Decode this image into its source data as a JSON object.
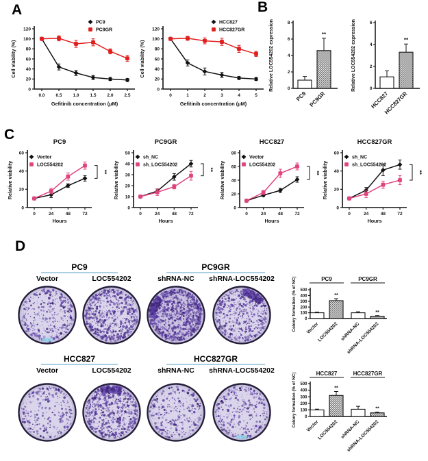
{
  "panel_labels": {
    "a": "A",
    "b": "B",
    "c": "C",
    "d": "D"
  },
  "colors": {
    "black_series": "#111111",
    "red_series": "#e11d1d",
    "pink_series": "#e0447e",
    "axis": "#111111",
    "dish_fill": "#d7d1e8",
    "dish_ring": "#251d39",
    "dish_rim_band": "#c3bcdb",
    "dot_colors": [
      "#4b2f8e",
      "#5d41a5",
      "#6f55b5",
      "#3c2470"
    ],
    "header_underline": "#aacfe3",
    "cyan_spot": "#8fd4ea"
  },
  "chart_data": [
    {
      "id": "A-left",
      "type": "line",
      "title": "",
      "xlabel": "Gefitinib concentration (μM)",
      "ylabel": "Cell viability (%)",
      "x": [
        0,
        0.5,
        1,
        1.5,
        2,
        2.5
      ],
      "xtick_labels": [
        "0.0",
        "0.5",
        "1.0",
        "1.5",
        "2.0",
        "2.5"
      ],
      "ylim": [
        0,
        120
      ],
      "yticks": [
        0,
        20,
        40,
        60,
        80,
        100,
        120
      ],
      "legend_position": "top-right",
      "series": [
        {
          "name": "PC9",
          "color": "black",
          "marker": "diamond",
          "values": [
            100,
            44,
            32,
            23,
            20,
            18
          ],
          "err": [
            3,
            6,
            5,
            4,
            3,
            3
          ]
        },
        {
          "name": "PC9GR",
          "color": "red",
          "marker": "square",
          "values": [
            100,
            101,
            90,
            93,
            75,
            61
          ],
          "err": [
            3,
            5,
            7,
            7,
            5,
            6
          ]
        }
      ]
    },
    {
      "id": "A-right",
      "type": "line",
      "title": "",
      "xlabel": "Gefitinib concentration (μM)",
      "ylabel": "Cell viability (%)",
      "x": [
        0,
        1,
        2,
        3,
        4,
        5
      ],
      "xtick_labels": [
        "0",
        "1",
        "2",
        "3",
        "4",
        "5"
      ],
      "ylim": [
        0,
        120
      ],
      "yticks": [
        0,
        20,
        40,
        60,
        80,
        100,
        120
      ],
      "legend_position": "top-right",
      "series": [
        {
          "name": "HCC827",
          "color": "black",
          "marker": "diamond",
          "values": [
            100,
            52,
            35,
            28,
            22,
            20
          ],
          "err": [
            3,
            6,
            7,
            5,
            3,
            3
          ]
        },
        {
          "name": "HCC827GR",
          "color": "red",
          "marker": "square",
          "values": [
            100,
            101,
            96,
            94,
            80,
            70
          ],
          "err": [
            3,
            4,
            6,
            7,
            7,
            5
          ]
        }
      ]
    },
    {
      "id": "B-left",
      "type": "bar",
      "ylabel": "Relative LOC554202 expression",
      "ylim": [
        0,
        8
      ],
      "yticks": [
        0,
        2,
        4,
        6,
        8
      ],
      "bars": [
        {
          "label": "PC9",
          "value": 1.0,
          "err": 0.45,
          "fill": "white"
        },
        {
          "label": "PC9GR",
          "value": 4.6,
          "err": 1.5,
          "fill": "hatch",
          "sig": "**"
        }
      ]
    },
    {
      "id": "B-right",
      "type": "bar",
      "ylabel": "Relative LOC554202 expression",
      "ylim": [
        0,
        6
      ],
      "yticks": [
        0,
        2,
        4,
        6
      ],
      "bars": [
        {
          "label": "HCC827",
          "value": 1.05,
          "err": 0.55,
          "fill": "white"
        },
        {
          "label": "HCC827GR",
          "value": 3.3,
          "err": 0.75,
          "fill": "hatch",
          "sig": "**"
        }
      ]
    },
    {
      "id": "C-PC9",
      "type": "line",
      "title": "PC9",
      "xlabel": "Hours",
      "ylabel": "Relative viability",
      "x": [
        0,
        24,
        48,
        72
      ],
      "xtick_labels": [
        "0",
        "24",
        "48",
        "72"
      ],
      "ylim": [
        0,
        60
      ],
      "yticks": [
        0,
        20,
        40,
        60
      ],
      "legend_position": "top-left-inside",
      "sig": "**",
      "series": [
        {
          "name": "Vector",
          "color": "black",
          "marker": "diamond",
          "values": [
            10,
            14,
            24,
            32
          ],
          "err": [
            1,
            3,
            2,
            3
          ]
        },
        {
          "name": "LOC554202",
          "color": "pink",
          "marker": "square",
          "values": [
            10,
            18,
            34,
            46
          ],
          "err": [
            1,
            3,
            4,
            4
          ]
        }
      ]
    },
    {
      "id": "C-PC9GR",
      "type": "line",
      "title": "PC9GR",
      "xlabel": "Hours",
      "ylabel": "Relative viability",
      "x": [
        0,
        24,
        48,
        72
      ],
      "xtick_labels": [
        "0",
        "24",
        "48",
        "72"
      ],
      "ylim": [
        0,
        50
      ],
      "yticks": [
        0,
        10,
        20,
        30,
        40,
        50
      ],
      "legend_position": "top-left-inside",
      "sig": "**",
      "series": [
        {
          "name": "sh_NC",
          "color": "black",
          "marker": "diamond",
          "values": [
            10,
            15,
            28,
            40
          ],
          "err": [
            1,
            2,
            3,
            3
          ]
        },
        {
          "name": "sh_LOC554202",
          "color": "pink",
          "marker": "square",
          "values": [
            10,
            14,
            19,
            29
          ],
          "err": [
            1,
            3,
            2,
            4
          ]
        }
      ]
    },
    {
      "id": "C-HCC827",
      "type": "line",
      "title": "HCC827",
      "xlabel": "Hours",
      "ylabel": "Relative viability",
      "x": [
        0,
        24,
        48,
        72
      ],
      "xtick_labels": [
        "0",
        "24",
        "48",
        "72"
      ],
      "ylim": [
        0,
        80
      ],
      "yticks": [
        0,
        20,
        40,
        60,
        80
      ],
      "legend_position": "top-left-inside",
      "sig": "**",
      "series": [
        {
          "name": "Vector",
          "color": "black",
          "marker": "diamond",
          "values": [
            10,
            18,
            25,
            41
          ],
          "err": [
            1,
            2,
            3,
            4
          ]
        },
        {
          "name": "LOC554202",
          "color": "pink",
          "marker": "square",
          "values": [
            10,
            22,
            50,
            60
          ],
          "err": [
            1,
            3,
            6,
            5
          ]
        }
      ]
    },
    {
      "id": "C-HCC827GR",
      "type": "line",
      "title": "HCC827GR",
      "xlabel": "Hours",
      "ylabel": "Relative viability",
      "x": [
        0,
        24,
        48,
        72
      ],
      "xtick_labels": [
        "0",
        "24",
        "48",
        "72"
      ],
      "ylim": [
        0,
        60
      ],
      "yticks": [
        0,
        20,
        40,
        60
      ],
      "legend_position": "top-left-inside",
      "sig": "**",
      "series": [
        {
          "name": "sh_NC",
          "color": "black",
          "marker": "diamond",
          "values": [
            10,
            19,
            41,
            47
          ],
          "err": [
            1,
            3,
            6,
            5
          ]
        },
        {
          "name": "sh_LOC554202",
          "color": "pink",
          "marker": "square",
          "values": [
            10,
            15,
            25,
            30
          ],
          "err": [
            1,
            4,
            4,
            5
          ]
        }
      ]
    },
    {
      "id": "D-top",
      "type": "bar",
      "ylabel": "Colony formation (% of NC)",
      "ylim": [
        0,
        500
      ],
      "yticks": [
        0,
        100,
        200,
        300,
        400,
        500
      ],
      "groups": [
        {
          "label": "PC9",
          "from": 0,
          "to": 1
        },
        {
          "label": "PC9GR",
          "from": 2,
          "to": 3
        }
      ],
      "bars": [
        {
          "label": "Vector",
          "value": 100,
          "err": 12,
          "fill": "white"
        },
        {
          "label": "LOC554202",
          "value": 310,
          "err": 35,
          "fill": "hatch",
          "sig": "**"
        },
        {
          "label": "shRNA-NC",
          "value": 100,
          "err": 18,
          "fill": "white"
        },
        {
          "label": "shRNA-LOC554202",
          "value": 40,
          "err": 10,
          "fill": "hatch",
          "sig": "**"
        }
      ]
    },
    {
      "id": "D-bottom",
      "type": "bar",
      "ylabel": "Colony formation (% of NC)",
      "ylim": [
        0,
        500
      ],
      "yticks": [
        0,
        100,
        200,
        300,
        400,
        500
      ],
      "groups": [
        {
          "label": "HCC827",
          "from": 0,
          "to": 1
        },
        {
          "label": "HCC827GR",
          "from": 2,
          "to": 3
        }
      ],
      "bars": [
        {
          "label": "Vector",
          "value": 100,
          "err": 12,
          "fill": "white"
        },
        {
          "label": "LOC554202",
          "value": 320,
          "err": 60,
          "fill": "hatch",
          "sig": "**"
        },
        {
          "label": "shRNA-NC",
          "value": 110,
          "err": 45,
          "fill": "white"
        },
        {
          "label": "shRNA-LOC554202",
          "value": 55,
          "err": 12,
          "fill": "hatch",
          "sig": "**"
        }
      ]
    }
  ],
  "colony": {
    "rows": [
      {
        "groups": [
          {
            "name": "PC9",
            "dishes": [
              {
                "label": "Vector",
                "density": 420,
                "cyan": true
              },
              {
                "label": "LOC554202",
                "density": 820
              }
            ]
          },
          {
            "name": "PC9GR",
            "dishes": [
              {
                "label": "shRNA-NC",
                "density": 1250,
                "blob_angle": 200
              },
              {
                "label": "shRNA-LOC554202",
                "density": 620,
                "blob_angle": -60
              }
            ]
          }
        ]
      },
      {
        "groups": [
          {
            "name": "HCC827",
            "dishes": [
              {
                "label": "Vector",
                "density": 300
              },
              {
                "label": "LOC554202",
                "density": 780,
                "blob_angle": -90
              }
            ]
          },
          {
            "name": "HCC827GR",
            "dishes": [
              {
                "label": "shRNA-NC",
                "density": 330
              },
              {
                "label": "shRNA-LOC554202",
                "density": 340,
                "cyan": true
              }
            ]
          }
        ]
      }
    ]
  }
}
